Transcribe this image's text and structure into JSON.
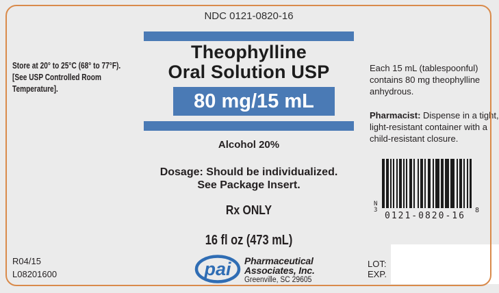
{
  "label": {
    "ndc": "NDC 0121-0820-16",
    "product_name_line1": "Theophylline",
    "product_name_line2": "Oral Solution USP",
    "strength": "80 mg/15 mL",
    "alcohol": "Alcohol 20%",
    "dosage_line1": "Dosage: Should be individualized.",
    "dosage_line2": "See Package Insert.",
    "rx": "Rx ONLY",
    "net_contents": "16 fl oz (473 mL)"
  },
  "left_panel": {
    "storage_line1": "Store at 20° to 25°C (68° to 77°F).",
    "storage_line2": "[See USP Controlled Room",
    "storage_line3": "Temperature]."
  },
  "right_panel": {
    "contents_line1": "Each 15 mL (tablespoonful)",
    "contents_line2": "contains 80 mg theophylline",
    "contents_line3": "anhydrous.",
    "pharmacist_bold": "Pharmacist:",
    "pharmacist_line1_rest": " Dispense in a tight,",
    "pharmacist_line2": "light-resistant container with a",
    "pharmacist_line3": "child-resistant closure."
  },
  "barcode": {
    "left_char_top": "N",
    "left_char_bottom": "3",
    "digits": "0121-0820-16",
    "right_char": "8",
    "pattern": [
      [
        4,
        2
      ],
      [
        4,
        2
      ],
      [
        2,
        2
      ],
      [
        2,
        3
      ],
      [
        2,
        2
      ],
      [
        4,
        2
      ],
      [
        2,
        2
      ],
      [
        2,
        3
      ],
      [
        4,
        2
      ],
      [
        2,
        4
      ],
      [
        2,
        2
      ],
      [
        4,
        2
      ],
      [
        2,
        3
      ],
      [
        4,
        3
      ],
      [
        2,
        2
      ],
      [
        6,
        2
      ],
      [
        4,
        2
      ],
      [
        6,
        2
      ],
      [
        6,
        3
      ],
      [
        2,
        2
      ],
      [
        4,
        2
      ],
      [
        2,
        3
      ],
      [
        2,
        2
      ],
      [
        3,
        0
      ]
    ]
  },
  "footer": {
    "revision": "R04/15",
    "lot_number": "L08201600",
    "logo_text": "pai",
    "company_line1": "Pharmaceutical",
    "company_line2": "Associates, Inc.",
    "company_line3": "Greenville, SC 29605",
    "lot_label": "LOT:",
    "exp_label": "EXP."
  },
  "colors": {
    "accent_blue": "#4a7ab5",
    "logo_blue": "#2f6db4",
    "border_orange": "#d98a4a",
    "background": "#ebebeb",
    "text": "#231f20"
  }
}
